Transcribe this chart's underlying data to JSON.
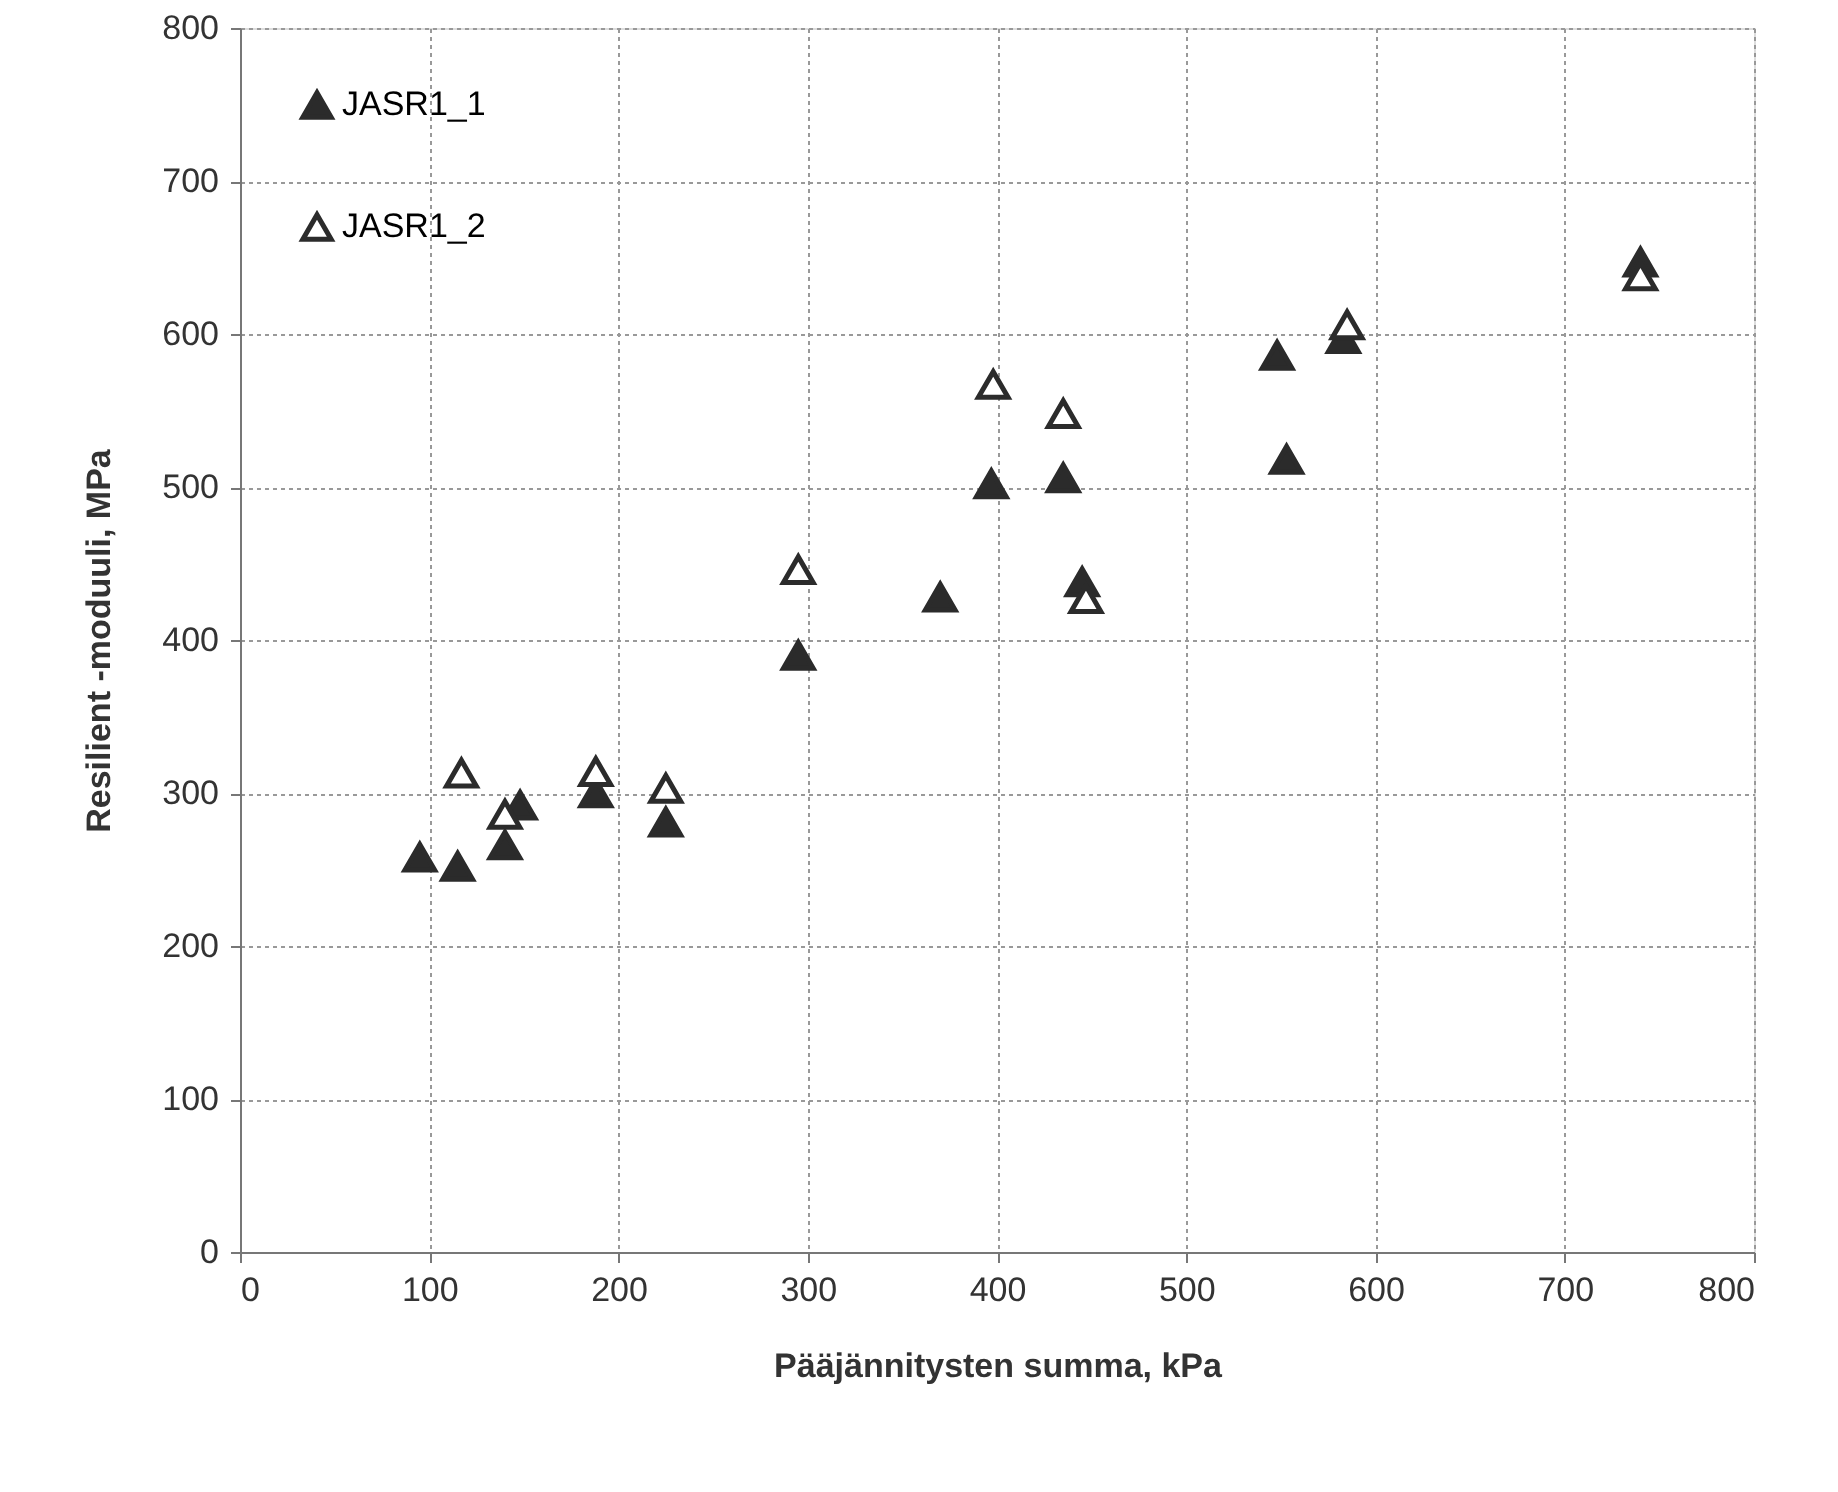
{
  "chart_data": {
    "type": "scatter",
    "xlabel": "Pääjännitysten summa, kPa",
    "ylabel": "Resilient -moduuli, MPa",
    "xlim": [
      0,
      800
    ],
    "xticks": [
      0,
      100,
      200,
      300,
      400,
      500,
      600,
      700,
      800
    ],
    "ylim": [
      0,
      800
    ],
    "yticks": [
      0,
      100,
      200,
      300,
      400,
      500,
      600,
      700,
      800
    ],
    "grid": true,
    "legend": "top left",
    "marker": "triangle",
    "series": [
      {
        "name": "JASR1_1",
        "color": "#2b2b2b",
        "x": [
          95,
          115,
          140,
          148,
          188,
          225,
          295,
          370,
          397,
          435,
          445,
          548,
          553,
          583,
          740
        ],
        "values": [
          258,
          252,
          266,
          292,
          300,
          281,
          390,
          428,
          502,
          506,
          438,
          586,
          518,
          597,
          647
        ]
      },
      {
        "name": "JASR1_2",
        "color": "#ffffff",
        "x": [
          117,
          140,
          188,
          225,
          295,
          398,
          435,
          447,
          585,
          740
        ],
        "values": [
          313,
          286,
          314,
          303,
          446,
          567,
          548,
          427,
          606,
          638
        ]
      }
    ]
  }
}
